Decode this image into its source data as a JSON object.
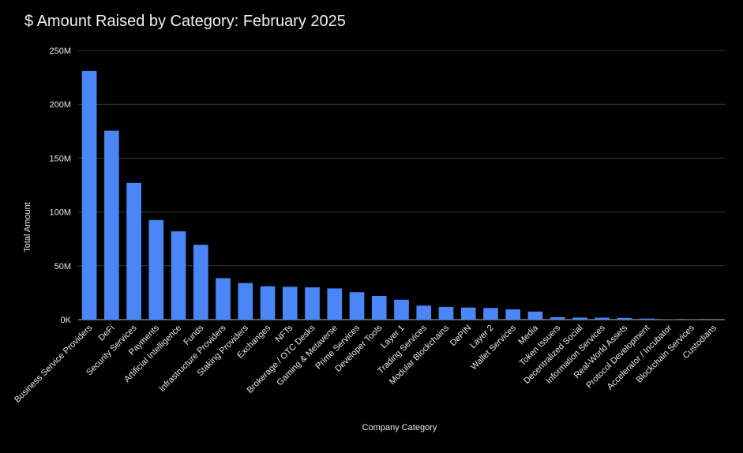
{
  "chart_data": {
    "type": "bar",
    "title": "$ Amount Raised by Category: February 2025",
    "xlabel": "Company Category",
    "ylabel": "Total Amount",
    "ylim": [
      0,
      250000000
    ],
    "yticks": [
      0,
      50000000,
      100000000,
      150000000,
      200000000,
      250000000
    ],
    "ytick_labels": [
      "0K",
      "50M",
      "100M",
      "150M",
      "200M",
      "250M"
    ],
    "grid": true,
    "bar_color": "#4a86f7",
    "categories": [
      "Business Service Providers",
      "DeFi",
      "Security Services",
      "Payments",
      "Artificial Intelligence",
      "Funds",
      "Infrastructure Providers",
      "Staking Providers",
      "Exchanges",
      "NFTs",
      "Brokerage / OTC Desks",
      "Gaming & Metaverse",
      "Prime Services",
      "Developer Tools",
      "Layer 1",
      "Trading Services",
      "Modular Blockchains",
      "DePIN",
      "Layer 2",
      "Wallet Services",
      "Media",
      "Token Issuers",
      "Decentralized Social",
      "Information Services",
      "Real-World Assets",
      "Protocol Development",
      "Accelerator / Incubator",
      "Blockchain Services",
      "Custodians"
    ],
    "values": [
      231000000,
      175500000,
      127000000,
      92500000,
      82000000,
      69500000,
      38500000,
      34000000,
      31000000,
      30500000,
      30000000,
      29000000,
      25500000,
      22000000,
      18500000,
      13000000,
      11800000,
      11200000,
      10800000,
      9500000,
      7500000,
      2200000,
      1900000,
      1800000,
      1600000,
      1000000,
      300000,
      200000,
      100000
    ]
  }
}
